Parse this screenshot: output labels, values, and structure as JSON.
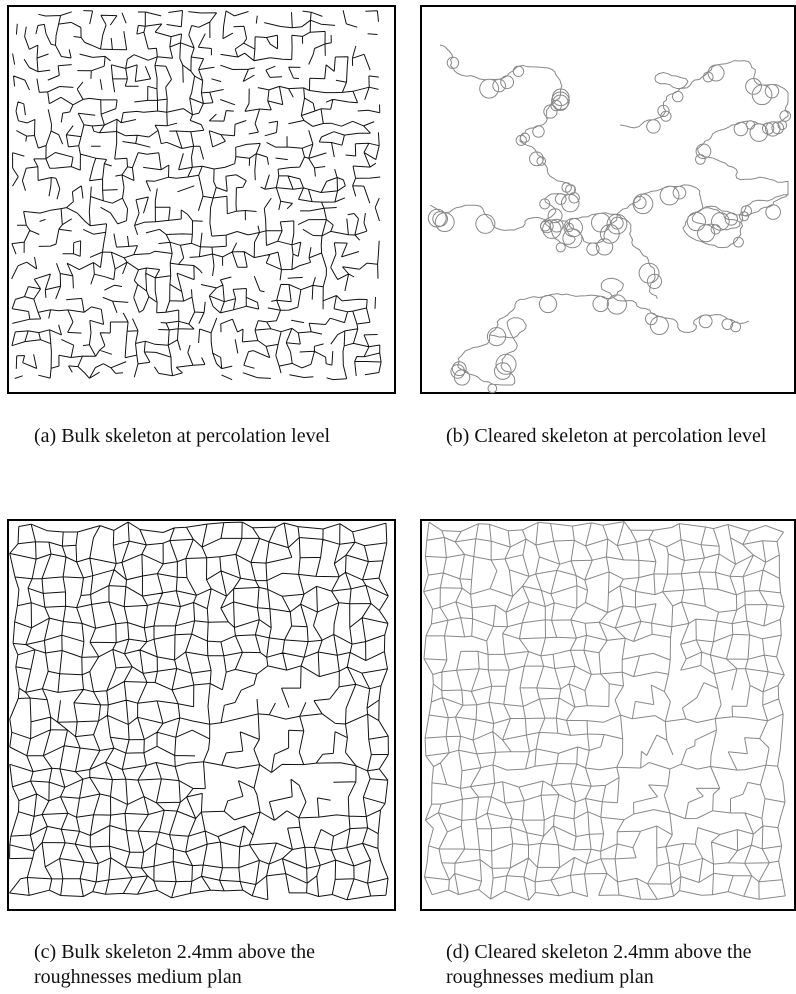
{
  "panels": [
    {
      "caption": "(a) Bulk skeleton at percolation level"
    },
    {
      "caption": "(b) Cleared skeleton at percolation level"
    },
    {
      "caption": "(c) Bulk skeleton 2.4mm above the roughnesses medium plan"
    },
    {
      "caption": "(d) Cleared skeleton 2.4mm above the roughnesses medium plan"
    }
  ]
}
